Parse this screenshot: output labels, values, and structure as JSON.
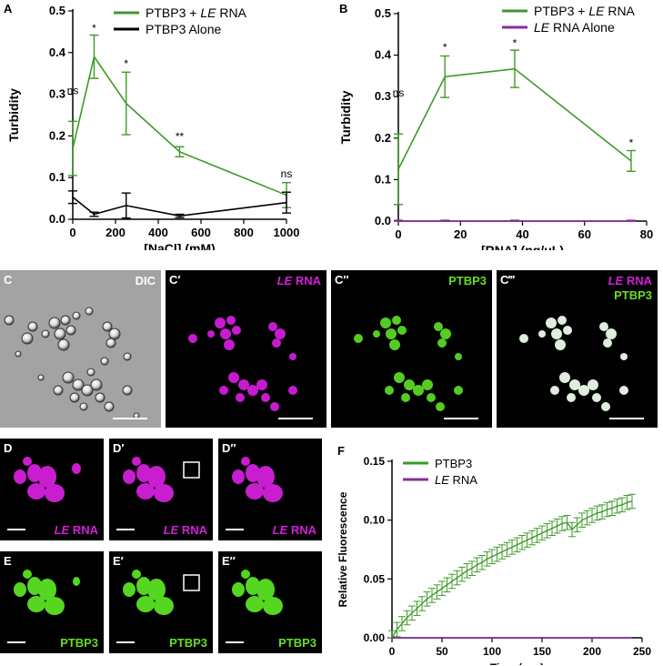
{
  "colors": {
    "green": "#3d9a28",
    "black": "#000000",
    "purple": "#8a2a9e",
    "magenta": "#d21fd8",
    "bright_green": "#66dd22"
  },
  "panel_letters": {
    "A": "A",
    "B": "B",
    "C": "C",
    "Cp": "C′",
    "Cpp": "C″",
    "Cppp": "C‴",
    "D": "D",
    "Dp": "D′",
    "Dpp": "D″",
    "E": "E",
    "Ep": "E′",
    "Epp": "E″",
    "F": "F"
  },
  "micrographs": {
    "C": {
      "label": "DIC"
    },
    "Cp": {
      "label_italic": "LE",
      "label_rest": " RNA"
    },
    "Cpp": {
      "label": "PTBP3"
    },
    "Cppp": {
      "label1_italic": "LE",
      "label1_rest": " RNA",
      "label2": "PTBP3"
    },
    "D_label_italic": "LE",
    "D_label_rest": " RNA",
    "E_label": "PTBP3"
  },
  "chart_data": [
    {
      "panel": "A",
      "type": "line",
      "xlabel": "[NaCl] (mM)",
      "ylabel": "Turbidity",
      "xlim": [
        0,
        1000
      ],
      "ylim": [
        0,
        0.5
      ],
      "xticks": [
        "0",
        "200",
        "400",
        "600",
        "800",
        "1000"
      ],
      "yticks": [
        "0.0",
        "0.1",
        "0.2",
        "0.3",
        "0.4",
        "0.5"
      ],
      "legend_placement": "top-right",
      "series": [
        {
          "legend_prefix": "PTBP3 + ",
          "legend_italic": "LE",
          "legend_suffix": " RNA",
          "color": "#3d9a28",
          "x": [
            0,
            100,
            250,
            500,
            1000
          ],
          "y": [
            0.17,
            0.39,
            0.278,
            0.162,
            0.058
          ],
          "err": [
            0.065,
            0.052,
            0.075,
            0.012,
            0.03
          ]
        },
        {
          "legend_prefix": "PTBP3 Alone",
          "legend_italic": "",
          "legend_suffix": "",
          "color": "#000000",
          "x": [
            0,
            100,
            250,
            500,
            1000
          ],
          "y": [
            0.053,
            0.012,
            0.033,
            0.008,
            0.04
          ],
          "err": [
            0.015,
            0.005,
            0.03,
            0.004,
            0.025
          ]
        }
      ],
      "annotations": [
        {
          "x": 0,
          "y": 0.3,
          "text": "ns"
        },
        {
          "x": 100,
          "y": 0.45,
          "text": "*"
        },
        {
          "x": 250,
          "y": 0.365,
          "text": "*"
        },
        {
          "x": 500,
          "y": 0.19,
          "text": "**"
        },
        {
          "x": 1000,
          "y": 0.1,
          "text": "ns"
        }
      ]
    },
    {
      "panel": "B",
      "type": "line",
      "xlabel": "[RNA] (ng/μL)",
      "ylabel": "Turbidity",
      "xlim": [
        0,
        80
      ],
      "ylim": [
        0,
        0.5
      ],
      "xticks": [
        "0",
        "20",
        "40",
        "60",
        "80"
      ],
      "yticks": [
        "0.0",
        "0.1",
        "0.2",
        "0.3",
        "0.4",
        "0.5"
      ],
      "legend_placement": "top-right",
      "series": [
        {
          "legend_prefix": "PTBP3 + ",
          "legend_italic": "LE",
          "legend_suffix": " RNA",
          "color": "#3d9a28",
          "x": [
            0,
            15,
            37.5,
            75
          ],
          "y": [
            0.125,
            0.348,
            0.367,
            0.145
          ],
          "err": [
            0.085,
            0.05,
            0.045,
            0.025
          ]
        },
        {
          "legend_prefix": "",
          "legend_italic": "LE",
          "legend_suffix": " RNA Alone",
          "color": "#8a2a9e",
          "x": [
            0,
            15,
            37.5,
            75
          ],
          "y": [
            0.0,
            0.0,
            0.0,
            0.0
          ],
          "err": [
            0.002,
            0.002,
            0.002,
            0.002
          ]
        }
      ],
      "annotations": [
        {
          "x": 0,
          "y": 0.3,
          "text": "ns"
        },
        {
          "x": 15,
          "y": 0.41,
          "text": "*"
        },
        {
          "x": 37.5,
          "y": 0.42,
          "text": "*"
        },
        {
          "x": 75,
          "y": 0.18,
          "text": "*"
        }
      ]
    },
    {
      "panel": "F",
      "type": "line",
      "xlabel": "Time (sec)",
      "ylabel": "Relative Fluorescence",
      "xlim": [
        0,
        250
      ],
      "ylim": [
        0,
        0.15
      ],
      "xticks": [
        "0",
        "50",
        "100",
        "150",
        "200",
        "250"
      ],
      "yticks": [
        "0.00",
        "0.05",
        "0.10",
        "0.15"
      ],
      "legend_placement": "top-left",
      "series": [
        {
          "legend_prefix": "PTBP3",
          "legend_italic": "",
          "legend_suffix": "",
          "color": "#3d9a28",
          "x": [
            0,
            5,
            10,
            15,
            20,
            25,
            30,
            35,
            40,
            45,
            50,
            55,
            60,
            65,
            70,
            75,
            80,
            85,
            90,
            95,
            100,
            105,
            110,
            115,
            120,
            125,
            130,
            135,
            140,
            145,
            150,
            155,
            160,
            165,
            170,
            175,
            180,
            185,
            190,
            195,
            200,
            205,
            210,
            215,
            220,
            225,
            230,
            235,
            240
          ],
          "y": [
            0.0,
            0.007,
            0.012,
            0.017,
            0.021,
            0.025,
            0.029,
            0.033,
            0.036,
            0.039,
            0.042,
            0.045,
            0.048,
            0.051,
            0.054,
            0.057,
            0.059,
            0.062,
            0.064,
            0.067,
            0.069,
            0.071,
            0.073,
            0.075,
            0.077,
            0.079,
            0.081,
            0.083,
            0.085,
            0.087,
            0.089,
            0.091,
            0.093,
            0.095,
            0.097,
            0.098,
            0.092,
            0.096,
            0.1,
            0.102,
            0.104,
            0.106,
            0.107,
            0.109,
            0.11,
            0.112,
            0.113,
            0.115,
            0.116
          ],
          "err": 0.006
        },
        {
          "legend_prefix": "",
          "legend_italic": "LE",
          "legend_suffix": " RNA",
          "color": "#8a2a9e",
          "x": [
            0,
            240
          ],
          "y": [
            0,
            0
          ],
          "err": 0
        }
      ]
    }
  ]
}
